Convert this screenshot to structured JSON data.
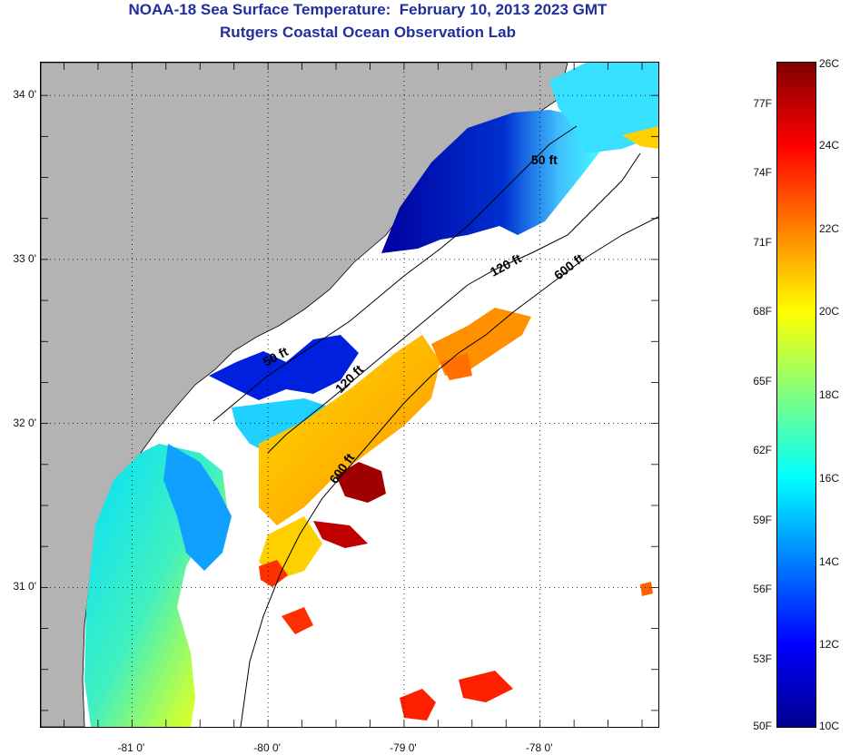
{
  "title": "NOAA-18 Sea Surface Temperature:  February 10, 2013 2023 GMT",
  "subtitle": "Rutgers Coastal Ocean Observation Lab",
  "map": {
    "lon_range": [
      -81.67,
      -77.13
    ],
    "lat_range": [
      30.15,
      34.2
    ],
    "lat_ticks": [
      {
        "value": 34,
        "label": "34 0'"
      },
      {
        "value": 33,
        "label": "33 0'"
      },
      {
        "value": 32,
        "label": "32 0'"
      },
      {
        "value": 31,
        "label": "31 0'"
      }
    ],
    "lon_ticks": [
      {
        "value": -81,
        "label": "-81 0'"
      },
      {
        "value": -80,
        "label": "-80 0'"
      },
      {
        "value": -79,
        "label": "-79 0'"
      },
      {
        "value": -78,
        "label": "-78 0'"
      }
    ],
    "land_color": "#b3b3b3",
    "contour_labels": [
      "50 ft",
      "120 ft",
      "600 ft",
      "50 ft",
      "120 ft",
      "600 ft"
    ]
  },
  "colorbar": {
    "celsius": [
      {
        "value": 26,
        "label": "26C"
      },
      {
        "value": 24,
        "label": "24C"
      },
      {
        "value": 22,
        "label": "22C"
      },
      {
        "value": 20,
        "label": "20C"
      },
      {
        "value": 18,
        "label": "18C"
      },
      {
        "value": 16,
        "label": "16C"
      },
      {
        "value": 14,
        "label": "14C"
      },
      {
        "value": 12,
        "label": "12C"
      },
      {
        "value": 10,
        "label": "10C"
      }
    ],
    "fahrenheit": [
      {
        "value": 77,
        "label": "77F"
      },
      {
        "value": 74,
        "label": "74F"
      },
      {
        "value": 71,
        "label": "71F"
      },
      {
        "value": 68,
        "label": "68F"
      },
      {
        "value": 65,
        "label": "65F"
      },
      {
        "value": 62,
        "label": "62F"
      },
      {
        "value": 59,
        "label": "59F"
      },
      {
        "value": 56,
        "label": "56F"
      },
      {
        "value": 53,
        "label": "53F"
      },
      {
        "value": 50,
        "label": "50F"
      }
    ],
    "colors": [
      "#00008f",
      "#0000ff",
      "#0080ff",
      "#00ffff",
      "#80ff80",
      "#ffff00",
      "#ff8000",
      "#ff0000",
      "#800000"
    ]
  }
}
